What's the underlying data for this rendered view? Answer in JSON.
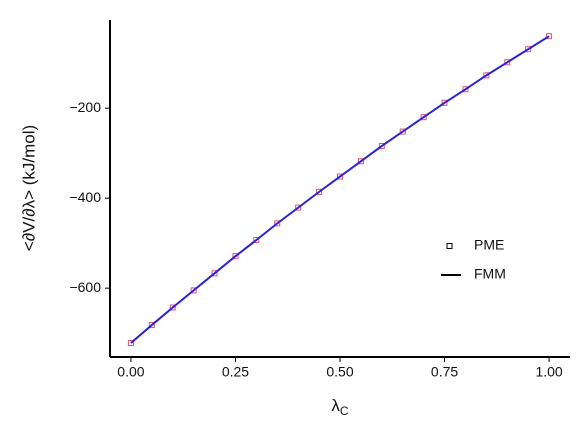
{
  "chart_data": {
    "type": "line",
    "x_label": "λ",
    "x_label_sub": "C",
    "y_label": "<∂V/∂λ> (kJ/mol)",
    "x": [
      0,
      0.05,
      0.1,
      0.15,
      0.2,
      0.25,
      0.3,
      0.35,
      0.4,
      0.45,
      0.5,
      0.55,
      0.6,
      0.65,
      0.7,
      0.75,
      0.8,
      0.85,
      0.9,
      0.95,
      1
    ],
    "series": [
      {
        "name": "PME",
        "color": "#e0507a",
        "style": "markers",
        "values": [
          -722,
          -682,
          -643,
          -605,
          -567,
          -529,
          -493,
          -456,
          -421,
          -386,
          -352,
          -318,
          -284,
          -252,
          -220,
          -188,
          -158,
          -127,
          -98,
          -69,
          -40
        ]
      },
      {
        "name": "FMM",
        "color": "#2a22d8",
        "style": "line",
        "values": [
          -722,
          -682,
          -643,
          -605,
          -567,
          -529,
          -493,
          -456,
          -421,
          -386,
          -352,
          -318,
          -284,
          -252,
          -220,
          -188,
          -158,
          -127,
          -98,
          -69,
          -40
        ]
      }
    ],
    "xlim": [
      -0.05,
      1.05
    ],
    "ylim": [
      -753,
      -4
    ],
    "xticks": [
      {
        "value": 0,
        "label": "0.00"
      },
      0.25,
      {
        "value": 0.5,
        "label": "0.50"
      },
      0.75,
      {
        "value": 1,
        "label": "1.00"
      }
    ],
    "yticks": [
      {
        "value": -600,
        "label": "−600"
      },
      {
        "value": -400,
        "label": "−400"
      },
      {
        "value": -200,
        "label": "−200"
      }
    ],
    "grid": false
  }
}
